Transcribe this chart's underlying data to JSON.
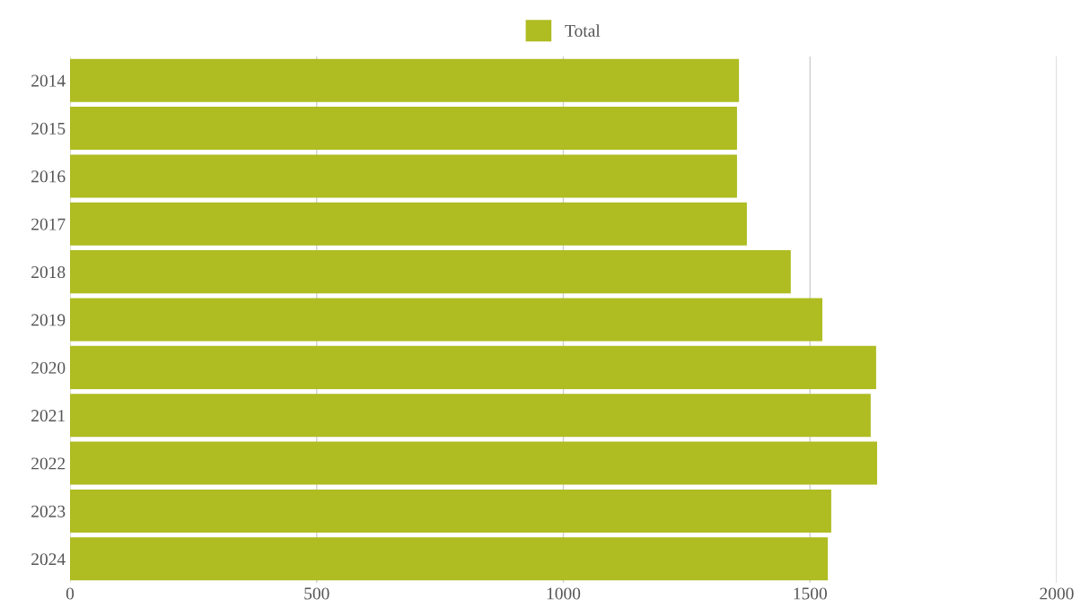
{
  "chart_data": {
    "type": "bar",
    "orientation": "horizontal",
    "categories": [
      "2014",
      "2015",
      "2016",
      "2017",
      "2018",
      "2019",
      "2020",
      "2021",
      "2022",
      "2023",
      "2024"
    ],
    "series": [
      {
        "name": "Total",
        "color": "#afbc22",
        "values": [
          1356,
          1352,
          1352,
          1372,
          1461,
          1525,
          1634,
          1623,
          1636,
          1543,
          1536
        ]
      }
    ],
    "xlim": [
      0,
      2000
    ],
    "xticks": [
      0,
      500,
      1000,
      1500,
      2000
    ],
    "grid": "x",
    "legend": "top"
  }
}
